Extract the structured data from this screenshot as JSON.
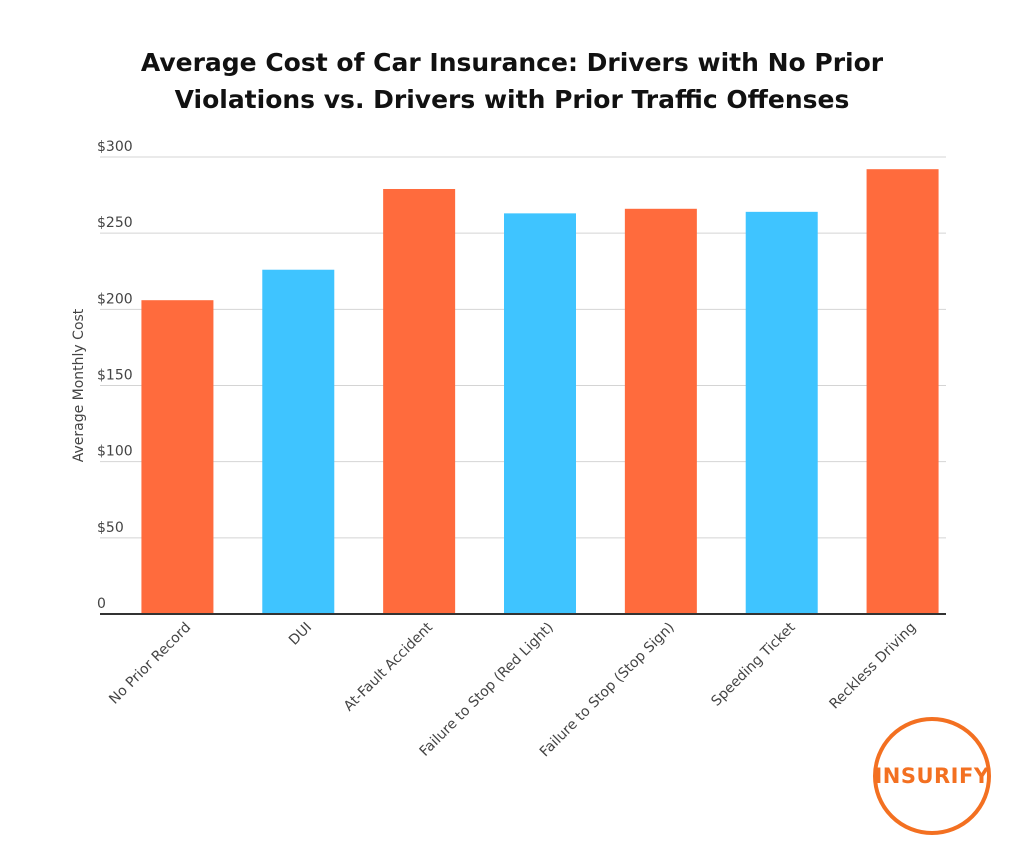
{
  "title_lines": [
    "Average Cost of Car Insurance: Drivers with No Prior",
    "Violations vs. Drivers with Prior Traffic Offenses"
  ],
  "colors": {
    "orange": "#ff6b3d",
    "blue": "#3fc4ff",
    "logo": "#f37021"
  },
  "logo": {
    "text": "INSURIFY"
  },
  "chart_data": {
    "type": "bar",
    "title": "Average Cost of Car Insurance: Drivers with No Prior Violations vs. Drivers with Prior Traffic Offenses",
    "xlabel": "",
    "ylabel": "Average Monthly Cost",
    "ylim": [
      0,
      300
    ],
    "yticks": [
      0,
      50,
      100,
      150,
      200,
      250,
      300
    ],
    "ytick_labels": [
      "0",
      "$50",
      "$100",
      "$150",
      "$200",
      "$250",
      "$300"
    ],
    "grid": true,
    "legend": "none",
    "categories": [
      "No Prior Record",
      "DUI",
      "At-Fault Accident",
      "Failure to Stop (Red Light)",
      "Failure to Stop (Stop Sign)",
      "Speeding Ticket",
      "Reckless Driving"
    ],
    "values": [
      206,
      226,
      279,
      263,
      266,
      264,
      292
    ],
    "bar_colors": [
      "#ff6b3d",
      "#3fc4ff",
      "#ff6b3d",
      "#3fc4ff",
      "#ff6b3d",
      "#3fc4ff",
      "#ff6b3d"
    ]
  }
}
